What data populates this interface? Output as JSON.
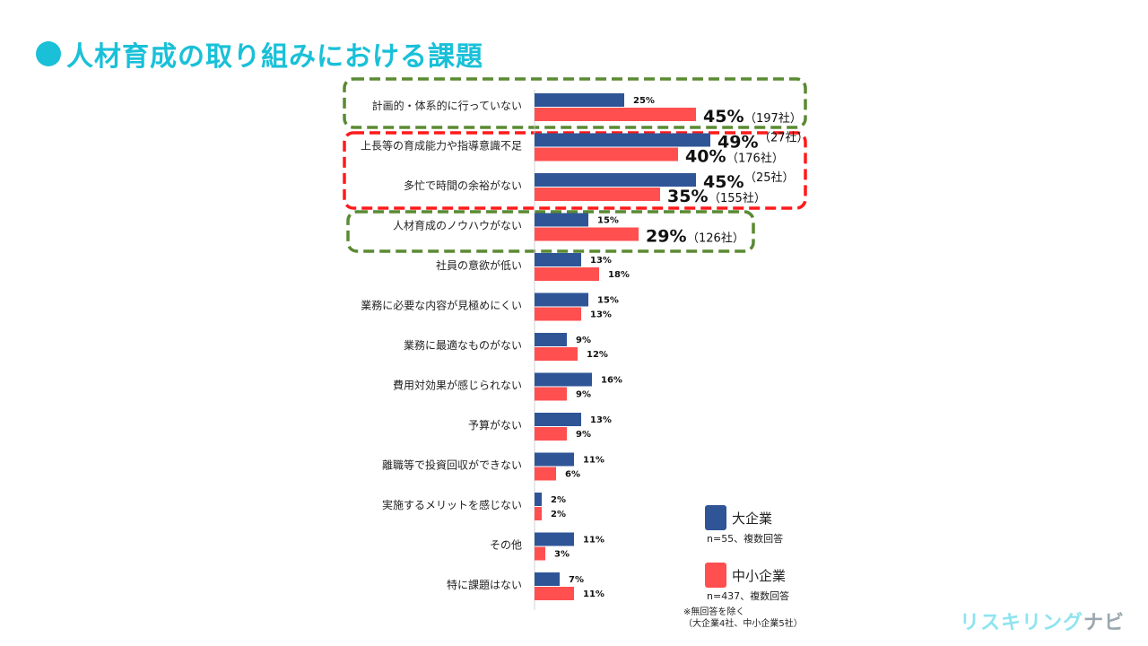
{
  "title": "人材育成の取り組みにおける課題",
  "chart_data": {
    "type": "bar",
    "orientation": "horizontal",
    "title": "人材育成の取り組みにおける課題",
    "xlabel": "",
    "ylabel": "",
    "xlim": [
      0,
      50
    ],
    "grid": false,
    "legend_position": "bottom-right",
    "categories": [
      "計画的・体系的に行っていない",
      "上長等の育成能力や指導意識不足",
      "多忙で時間の余裕がない",
      "人材育成のノウハウがない",
      "社員の意欲が低い",
      "業務に必要な内容が見極めにくい",
      "業務に最適なものがない",
      "費用対効果が感じられない",
      "予算がない",
      "離職等で投資回収ができない",
      "実施するメリットを感じない",
      "その他",
      "特に課題はない"
    ],
    "series": [
      {
        "name": "大企業",
        "color": "#2f5597",
        "values": [
          25,
          49,
          45,
          15,
          13,
          15,
          9,
          16,
          13,
          11,
          2,
          11,
          7
        ],
        "labels": [
          "25%",
          "49%",
          "45%",
          "15%",
          "13%",
          "15%",
          "9%",
          "16%",
          "13%",
          "11%",
          "2%",
          "11%",
          "7%"
        ],
        "counts": [
          "",
          "（27社）",
          "（25社）",
          "",
          "",
          "",
          "",
          "",
          "",
          "",
          "",
          "",
          ""
        ],
        "emphasis": [
          false,
          true,
          true,
          false,
          false,
          false,
          false,
          false,
          false,
          false,
          false,
          false,
          false
        ]
      },
      {
        "name": "中小企業",
        "color": "#ff4f4f",
        "values": [
          45,
          40,
          35,
          29,
          18,
          13,
          12,
          9,
          9,
          6,
          2,
          3,
          11
        ],
        "labels": [
          "45%",
          "40%",
          "35%",
          "29%",
          "18%",
          "13%",
          "12%",
          "9%",
          "9%",
          "6%",
          "2%",
          "3%",
          "11%"
        ],
        "counts": [
          "（197社）",
          "（176社）",
          "（155社）",
          "（126社）",
          "",
          "",
          "",
          "",
          "",
          "",
          "",
          "",
          ""
        ],
        "emphasis": [
          true,
          true,
          true,
          true,
          false,
          false,
          false,
          false,
          false,
          false,
          false,
          false,
          false
        ]
      }
    ],
    "highlights": [
      {
        "categories": [
          0
        ],
        "color": "#5a8a32"
      },
      {
        "categories": [
          1,
          2
        ],
        "color": "#ff1a1a"
      },
      {
        "categories": [
          3
        ],
        "color": "#5a8a32"
      }
    ]
  },
  "legend": {
    "large": {
      "label": "大企業",
      "note": "n=55、複数回答",
      "color": "#2f5597"
    },
    "small": {
      "label": "中小企業",
      "note": "n=437、複数回答",
      "color": "#ff4f4f"
    }
  },
  "footnote": [
    "※無回答を除く",
    "（大企業4社、中小企業5社）"
  ],
  "logo": {
    "main": "リスキリング",
    "sub": "ナビ"
  }
}
